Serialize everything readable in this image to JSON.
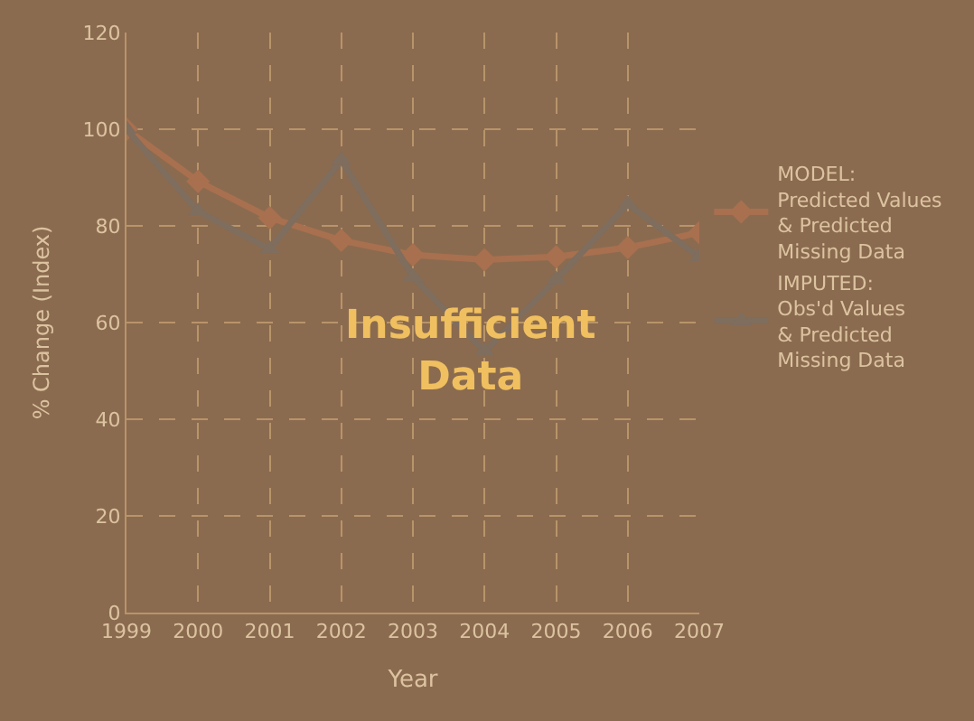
{
  "chart_data": {
    "type": "line",
    "x": [
      1999,
      2000,
      2001,
      2002,
      2003,
      2004,
      2005,
      2006,
      2007
    ],
    "xlim": [
      1999,
      2007
    ],
    "xticks": [
      1999,
      2000,
      2001,
      2002,
      2003,
      2004,
      2005,
      2006,
      2007
    ],
    "ylim": [
      0,
      120
    ],
    "yticks": [
      0,
      20,
      40,
      60,
      80,
      100,
      120
    ],
    "xlabel": "Year",
    "ylabel": "% Change (Index)",
    "grid": true,
    "legend": "right",
    "line_style": "solid",
    "series": [
      {
        "name": "MODEL:\nPredicted Values\n& Predicted\nMissing Data",
        "color": "#a8704f",
        "marker": "diamond",
        "values": [
          100,
          89.2,
          81.7,
          77,
          74,
          73,
          73.6,
          75.5,
          78.6
        ]
      },
      {
        "name": "IMPUTED:\nObs'd Values\n& Predicted\nMissing Data",
        "color": "#7f6d5e",
        "marker": "triangle",
        "values": [
          100,
          83,
          75.2,
          93.6,
          69.5,
          54,
          68.9,
          84.5,
          73.6
        ]
      }
    ],
    "annotations": [
      "Insufficient\nData"
    ]
  }
}
